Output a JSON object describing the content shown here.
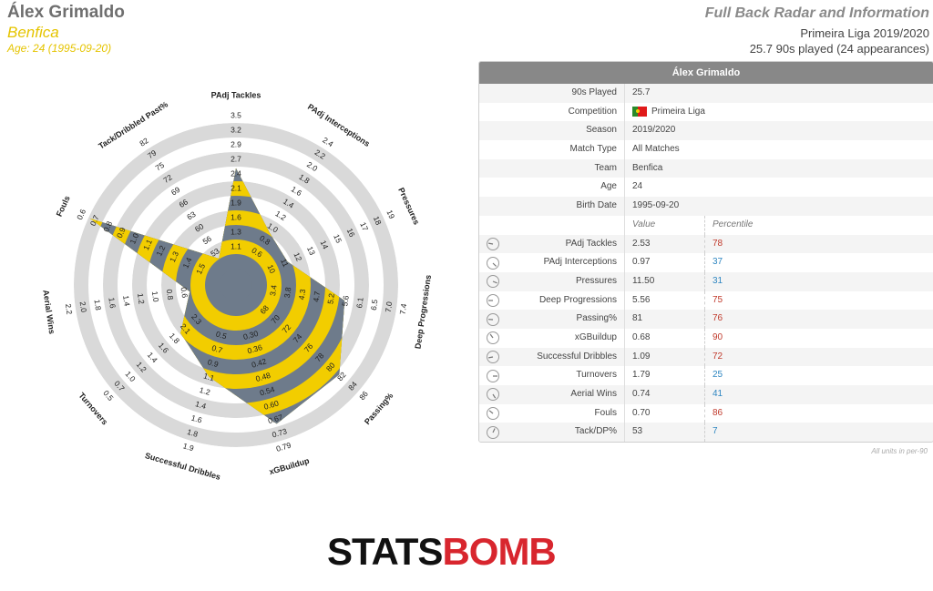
{
  "header": {
    "player": "Álex Grimaldo",
    "team": "Benfica",
    "age_line": "Age: 24 (1995-09-20)",
    "title": "Full Back Radar and Information",
    "competition_line": "Primeira Liga 2019/2020",
    "played_line": "25.7 90s played (24 appearances)"
  },
  "colors": {
    "fill": "#f2cd00",
    "ring": "#d9d9d9",
    "dark": "#6e7b8b",
    "high": "#c0392b",
    "low": "#2e86c1"
  },
  "chart_data": {
    "type": "radar",
    "title": "",
    "axes": [
      {
        "label": "PAdj Tackles",
        "ticks": [
          "1.1",
          "1.3",
          "1.6",
          "1.9",
          "2.1",
          "2.4",
          "2.7",
          "2.9",
          "3.2",
          "3.5"
        ],
        "min": 0.9,
        "max": 3.5,
        "value": 2.53
      },
      {
        "label": "PAdj Interceptions",
        "ticks": [
          "0.6",
          "0.8",
          "1.0",
          "1.2",
          "1.4",
          "1.6",
          "1.8",
          "2.0",
          "2.2",
          "2.4"
        ],
        "min": 0.4,
        "max": 2.4,
        "value": 0.97
      },
      {
        "label": "Pressures",
        "ticks": [
          "10",
          "11",
          "12",
          "13",
          "14",
          "15",
          "16",
          "17",
          "18",
          "19"
        ],
        "min": 9,
        "max": 19,
        "value": 11.5
      },
      {
        "label": "Deep Progressions",
        "ticks": [
          "3.4",
          "3.8",
          "4.3",
          "4.7",
          "5.2",
          "5.6",
          "6.1",
          "6.5",
          "7.0",
          "7.4"
        ],
        "min": 3.0,
        "max": 7.4,
        "value": 5.56
      },
      {
        "label": "Passing%",
        "ticks": [
          "68",
          "70",
          "72",
          "74",
          "76",
          "78",
          "80",
          "82",
          "84",
          "86"
        ],
        "min": 66,
        "max": 86,
        "value": 81
      },
      {
        "label": "xGBuildup",
        "ticks": [
          "0.30",
          "0.36",
          "0.42",
          "0.48",
          "0.54",
          "0.60",
          "0.67",
          "0.73",
          "0.79"
        ],
        "min": 0.24,
        "max": 0.79,
        "value": 0.68
      },
      {
        "label": "Successful Dribbles",
        "ticks": [
          "0.5",
          "0.7",
          "0.9",
          "1.1",
          "1.2",
          "1.4",
          "1.6",
          "1.8",
          "1.9"
        ],
        "min": 0.3,
        "max": 1.9,
        "value": 1.09
      },
      {
        "label": "Turnovers",
        "ticks": [
          "2.3",
          "2.1",
          "1.8",
          "1.6",
          "1.4",
          "1.2",
          "1.0",
          "0.7",
          "0.5"
        ],
        "min": 2.5,
        "max": 0.5,
        "value": 1.79
      },
      {
        "label": "Aerial Wins",
        "ticks": [
          "0.6",
          "0.8",
          "1.0",
          "1.2",
          "1.4",
          "1.6",
          "1.8",
          "2.0",
          "2.2"
        ],
        "min": 0.4,
        "max": 2.2,
        "value": 0.74
      },
      {
        "label": "Fouls",
        "ticks": [
          "1.5",
          "1.4",
          "1.3",
          "1.2",
          "1.1",
          "1.0",
          "0.9",
          "0.8",
          "0.7",
          "0.6"
        ],
        "min": 1.6,
        "max": 0.6,
        "value": 0.7
      },
      {
        "label": "Tack/Dribbled Past%",
        "ticks": [
          "53",
          "56",
          "60",
          "63",
          "66",
          "69",
          "72",
          "75",
          "79",
          "82"
        ],
        "min": 50,
        "max": 82,
        "value": 53
      }
    ]
  },
  "table": {
    "header": "Álex Grimaldo",
    "info": [
      {
        "label": "90s Played",
        "value": "25.7"
      },
      {
        "label": "Competition",
        "value": "Primeira Liga",
        "flag": true
      },
      {
        "label": "Season",
        "value": "2019/2020"
      },
      {
        "label": "Match Type",
        "value": "All Matches"
      },
      {
        "label": "Team",
        "value": "Benfica"
      },
      {
        "label": "Age",
        "value": "24"
      },
      {
        "label": "Birth Date",
        "value": "1995-09-20"
      }
    ],
    "col_value": "Value",
    "col_percentile": "Percentile",
    "stats": [
      {
        "label": "PAdj Tackles",
        "value": "2.53",
        "pct": "78"
      },
      {
        "label": "PAdj Interceptions",
        "value": "0.97",
        "pct": "37"
      },
      {
        "label": "Pressures",
        "value": "11.50",
        "pct": "31"
      },
      {
        "label": "Deep Progressions",
        "value": "5.56",
        "pct": "75"
      },
      {
        "label": "Passing%",
        "value": "81",
        "pct": "76"
      },
      {
        "label": "xGBuildup",
        "value": "0.68",
        "pct": "90"
      },
      {
        "label": "Successful Dribbles",
        "value": "1.09",
        "pct": "72"
      },
      {
        "label": "Turnovers",
        "value": "1.79",
        "pct": "25"
      },
      {
        "label": "Aerial Wins",
        "value": "0.74",
        "pct": "41"
      },
      {
        "label": "Fouls",
        "value": "0.70",
        "pct": "86"
      },
      {
        "label": "Tack/DP%",
        "value": "53",
        "pct": "7"
      }
    ]
  },
  "note": "All units in per-90",
  "logo": {
    "part1": "STATS",
    "part2": "BOMB"
  }
}
